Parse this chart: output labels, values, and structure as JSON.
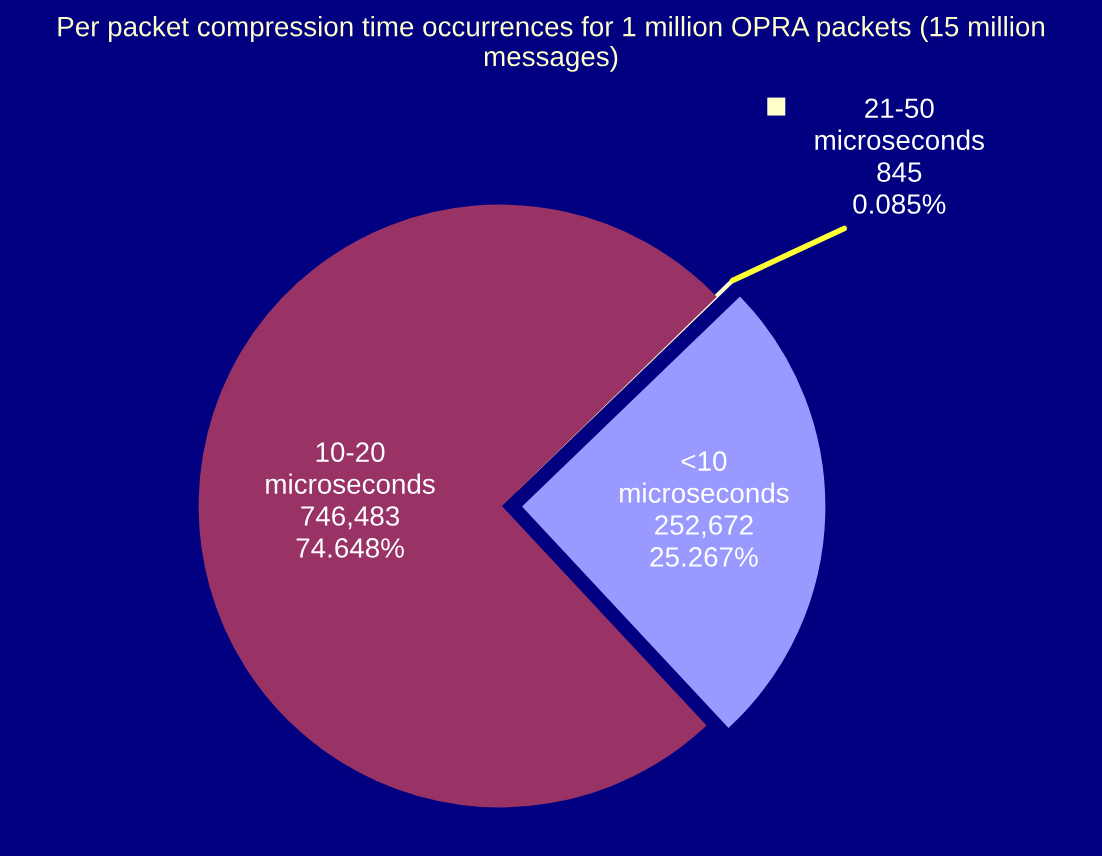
{
  "chart_data": {
    "type": "pie",
    "title": "Per packet compression time occurrences for 1 million OPRA packets (15 million messages)",
    "categories": [
      "<10 microseconds",
      "21-50 microseconds",
      "10-20 microseconds"
    ],
    "values": [
      252672,
      845,
      746483
    ],
    "colors": [
      "#9999ff",
      "#ffffcc",
      "#993366"
    ],
    "value_labels": [
      "252,672\n25.267%",
      "845\n0.085%",
      "746,483\n74.648%"
    ]
  }
}
